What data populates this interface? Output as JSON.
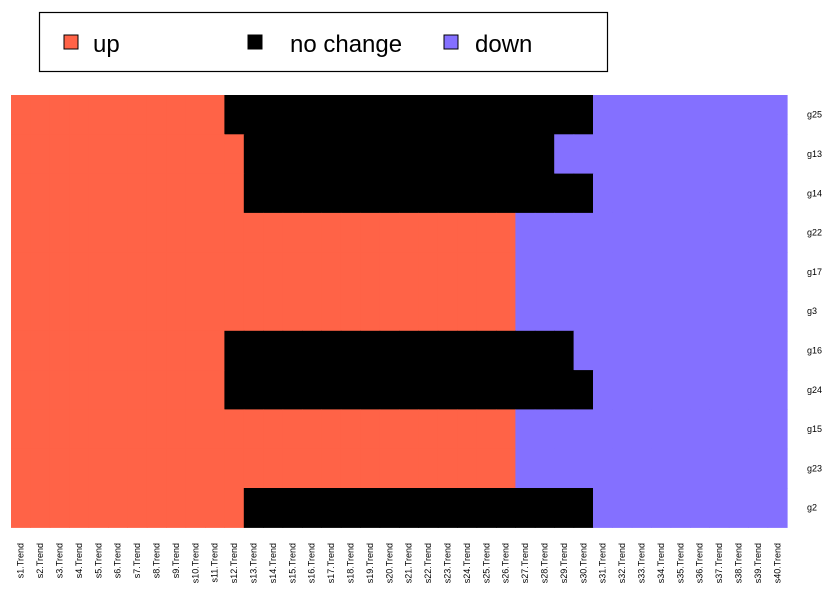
{
  "chart_data": {
    "type": "heatmap",
    "title": "",
    "xlabel": "",
    "ylabel": "",
    "legend": {
      "placement": "top",
      "entries": [
        {
          "key": "up",
          "label": "up"
        },
        {
          "key": "nc",
          "label": "no change"
        },
        {
          "key": "down",
          "label": "down"
        }
      ]
    },
    "colors": {
      "up": "#FF6347",
      "nc": "#000000",
      "down": "#8470FF"
    },
    "columns": [
      "s1.Trend",
      "s2.Trend",
      "s3.Trend",
      "s4.Trend",
      "s5.Trend",
      "s6.Trend",
      "s7.Trend",
      "s8.Trend",
      "s9.Trend",
      "s10.Trend",
      "s11.Trend",
      "s12.Trend",
      "s13.Trend",
      "s14.Trend",
      "s15.Trend",
      "s16.Trend",
      "s17.Trend",
      "s18.Trend",
      "s19.Trend",
      "s20.Trend",
      "s21.Trend",
      "s22.Trend",
      "s23.Trend",
      "s24.Trend",
      "s25.Trend",
      "s26.Trend",
      "s27.Trend",
      "s28.Trend",
      "s29.Trend",
      "s30.Trend",
      "s31.Trend",
      "s32.Trend",
      "s33.Trend",
      "s34.Trend",
      "s35.Trend",
      "s36.Trend",
      "s37.Trend",
      "s38.Trend",
      "s39.Trend",
      "s40.Trend"
    ],
    "rows": [
      {
        "label": "g25",
        "up": 11,
        "nc": 19,
        "down": 10
      },
      {
        "label": "g13",
        "up": 12,
        "nc": 16,
        "down": 12
      },
      {
        "label": "g14",
        "up": 12,
        "nc": 18,
        "down": 10
      },
      {
        "label": "g22",
        "up": 26,
        "nc": 0,
        "down": 14
      },
      {
        "label": "g17",
        "up": 26,
        "nc": 0,
        "down": 14
      },
      {
        "label": "g3",
        "up": 26,
        "nc": 0,
        "down": 14
      },
      {
        "label": "g16",
        "up": 11,
        "nc": 18,
        "down": 11
      },
      {
        "label": "g24",
        "up": 11,
        "nc": 19,
        "down": 10
      },
      {
        "label": "g15",
        "up": 26,
        "nc": 0,
        "down": 14
      },
      {
        "label": "g23",
        "up": 26,
        "nc": 0,
        "down": 14
      },
      {
        "label": "g2",
        "up": 12,
        "nc": 18,
        "down": 10
      }
    ]
  }
}
